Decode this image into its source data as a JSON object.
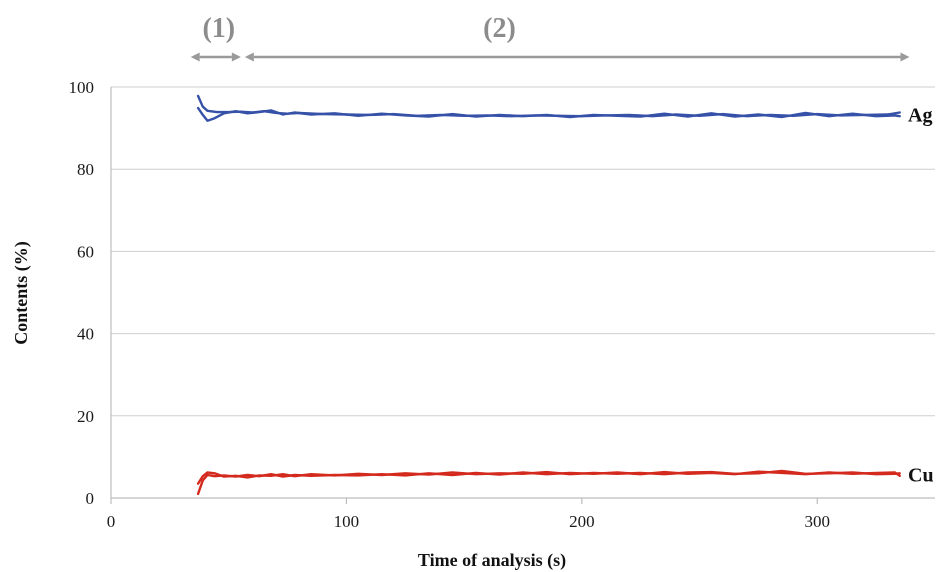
{
  "chart_data": {
    "type": "line",
    "title": "",
    "xlabel": "Time of analysis (s)",
    "ylabel": "Contents (%)",
    "xlim": [
      0,
      350
    ],
    "ylim": [
      0,
      100
    ],
    "x_ticks": [
      0,
      100,
      200,
      300
    ],
    "y_ticks": [
      0,
      20,
      40,
      60,
      80,
      100
    ],
    "grid": "horizontal",
    "legend": "none",
    "series_labels": [
      {
        "text": "Ag",
        "near_value": 93.3
      },
      {
        "text": "Cu",
        "near_value": 5.7
      }
    ],
    "phases": [
      {
        "label": "(1)",
        "x_start": 33,
        "x_end": 56
      },
      {
        "label": "(2)",
        "x_start": 56,
        "x_end": 340
      }
    ],
    "series": [
      {
        "element": "Ag",
        "run": 1,
        "color": "#3651a8",
        "points": [
          [
            37,
            97.8
          ],
          [
            39,
            95.2
          ],
          [
            41,
            94.2
          ],
          [
            45,
            93.9
          ],
          [
            50,
            93.9
          ],
          [
            55,
            94.0
          ],
          [
            60,
            93.8
          ],
          [
            65,
            94.1
          ],
          [
            70,
            93.7
          ],
          [
            75,
            93.5
          ],
          [
            80,
            93.7
          ],
          [
            90,
            93.4
          ],
          [
            100,
            93.3
          ],
          [
            110,
            93.2
          ],
          [
            120,
            93.4
          ],
          [
            130,
            93.0
          ],
          [
            140,
            93.2
          ],
          [
            150,
            93.0
          ],
          [
            160,
            93.1
          ],
          [
            170,
            92.9
          ],
          [
            180,
            93.1
          ],
          [
            190,
            93.0
          ],
          [
            200,
            92.9
          ],
          [
            210,
            93.1
          ],
          [
            220,
            93.2
          ],
          [
            230,
            92.9
          ],
          [
            240,
            93.3
          ],
          [
            250,
            93.0
          ],
          [
            260,
            93.4
          ],
          [
            270,
            92.9
          ],
          [
            280,
            93.2
          ],
          [
            290,
            93.0
          ],
          [
            300,
            93.4
          ],
          [
            310,
            93.1
          ],
          [
            320,
            93.2
          ],
          [
            330,
            93.3
          ],
          [
            335,
            93.8
          ]
        ]
      },
      {
        "element": "Ag",
        "run": 2,
        "color": "#3651a8",
        "points": [
          [
            37,
            94.9
          ],
          [
            39,
            93.2
          ],
          [
            41,
            91.8
          ],
          [
            44,
            92.4
          ],
          [
            48,
            93.6
          ],
          [
            53,
            94.1
          ],
          [
            58,
            93.6
          ],
          [
            63,
            93.9
          ],
          [
            68,
            94.3
          ],
          [
            73,
            93.3
          ],
          [
            78,
            93.8
          ],
          [
            85,
            93.3
          ],
          [
            95,
            93.6
          ],
          [
            105,
            93.0
          ],
          [
            115,
            93.5
          ],
          [
            125,
            93.1
          ],
          [
            135,
            92.8
          ],
          [
            145,
            93.4
          ],
          [
            155,
            92.8
          ],
          [
            165,
            93.2
          ],
          [
            175,
            92.9
          ],
          [
            185,
            93.2
          ],
          [
            195,
            92.7
          ],
          [
            205,
            93.2
          ],
          [
            215,
            93.0
          ],
          [
            225,
            92.8
          ],
          [
            235,
            93.5
          ],
          [
            245,
            92.8
          ],
          [
            255,
            93.6
          ],
          [
            265,
            92.8
          ],
          [
            275,
            93.3
          ],
          [
            285,
            92.7
          ],
          [
            295,
            93.7
          ],
          [
            305,
            92.9
          ],
          [
            315,
            93.5
          ],
          [
            325,
            92.9
          ],
          [
            333,
            93.1
          ],
          [
            335,
            92.9
          ]
        ]
      },
      {
        "element": "Cu",
        "run": 1,
        "color": "#d42a1e",
        "points": [
          [
            37,
            1.0
          ],
          [
            39,
            4.3
          ],
          [
            41,
            5.6
          ],
          [
            44,
            5.3
          ],
          [
            48,
            5.5
          ],
          [
            53,
            5.2
          ],
          [
            58,
            5.6
          ],
          [
            63,
            5.3
          ],
          [
            68,
            5.8
          ],
          [
            73,
            5.2
          ],
          [
            78,
            5.6
          ],
          [
            85,
            5.4
          ],
          [
            95,
            5.6
          ],
          [
            105,
            5.5
          ],
          [
            115,
            5.8
          ],
          [
            125,
            5.5
          ],
          [
            135,
            6.0
          ],
          [
            145,
            5.6
          ],
          [
            155,
            6.1
          ],
          [
            165,
            5.7
          ],
          [
            175,
            6.2
          ],
          [
            185,
            5.8
          ],
          [
            195,
            6.1
          ],
          [
            205,
            5.9
          ],
          [
            215,
            6.2
          ],
          [
            225,
            5.8
          ],
          [
            235,
            6.3
          ],
          [
            245,
            5.9
          ],
          [
            255,
            6.1
          ],
          [
            265,
            5.8
          ],
          [
            275,
            6.4
          ],
          [
            285,
            6.1
          ],
          [
            295,
            5.8
          ],
          [
            305,
            6.2
          ],
          [
            315,
            5.9
          ],
          [
            325,
            6.1
          ],
          [
            333,
            6.2
          ],
          [
            335,
            5.4
          ]
        ]
      },
      {
        "element": "Cu",
        "run": 2,
        "color": "#d42a1e",
        "points": [
          [
            37,
            3.5
          ],
          [
            39,
            5.3
          ],
          [
            41,
            6.2
          ],
          [
            44,
            6.0
          ],
          [
            48,
            5.2
          ],
          [
            53,
            5.4
          ],
          [
            58,
            5.0
          ],
          [
            63,
            5.5
          ],
          [
            68,
            5.4
          ],
          [
            73,
            5.8
          ],
          [
            78,
            5.3
          ],
          [
            85,
            5.8
          ],
          [
            95,
            5.5
          ],
          [
            105,
            5.9
          ],
          [
            115,
            5.6
          ],
          [
            125,
            6.0
          ],
          [
            135,
            5.7
          ],
          [
            145,
            6.2
          ],
          [
            155,
            5.8
          ],
          [
            165,
            6.0
          ],
          [
            175,
            5.9
          ],
          [
            185,
            6.3
          ],
          [
            195,
            5.8
          ],
          [
            205,
            6.1
          ],
          [
            215,
            5.9
          ],
          [
            225,
            6.1
          ],
          [
            235,
            5.8
          ],
          [
            245,
            6.2
          ],
          [
            255,
            6.3
          ],
          [
            265,
            5.9
          ],
          [
            275,
            6.0
          ],
          [
            285,
            6.6
          ],
          [
            295,
            5.9
          ],
          [
            305,
            6.0
          ],
          [
            315,
            6.2
          ],
          [
            325,
            5.8
          ],
          [
            333,
            5.9
          ],
          [
            335,
            6.0
          ]
        ]
      }
    ]
  }
}
